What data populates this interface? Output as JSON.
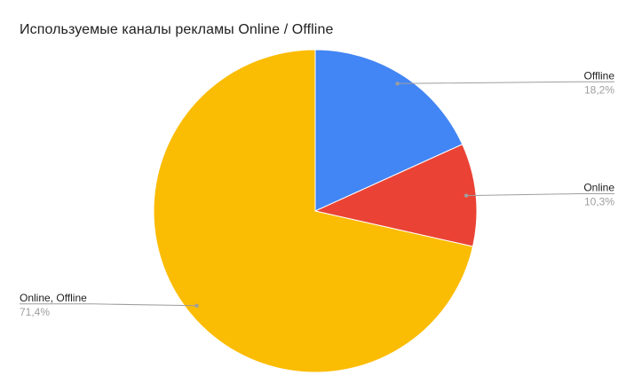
{
  "chart": {
    "title": "Используемые каналы рекламы Online / Offline"
  },
  "chart_data": {
    "type": "pie",
    "title": "Используемые каналы рекламы Online / Offline",
    "categories": [
      "Offline",
      "Online",
      "Online, Offline"
    ],
    "values": [
      18.2,
      10.3,
      71.4
    ],
    "value_labels": [
      "18,2%",
      "10,3%",
      "71,4%"
    ],
    "slice_colors": [
      "#4285F4",
      "#EA4335",
      "#FBBC04"
    ],
    "start_angle_deg": 0,
    "direction": "clockwise",
    "legend_position": "outside-labels-with-leader-lines",
    "style": {
      "background": "#FFFFFF",
      "title_color": "#212121",
      "label_color": "#212121",
      "percent_color": "#9E9E9E",
      "leader_line_color": "#9E9E9E",
      "slice_border_color": "#FFFFFF"
    }
  }
}
